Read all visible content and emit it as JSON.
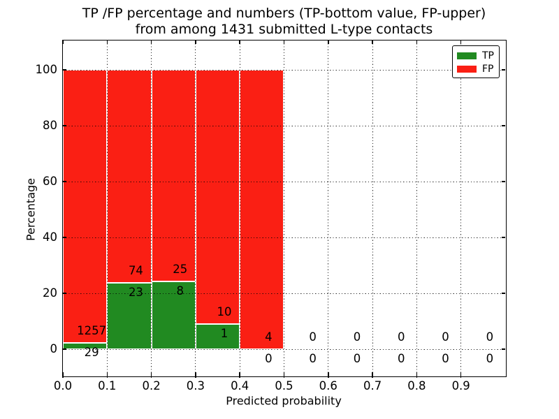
{
  "figure": {
    "title_line1": "TP /FP percentage and numbers (TP-bottom value, FP-upper)",
    "title_line2": "from among 1431 submitted L-type contacts",
    "xlabel": "Predicted probability",
    "ylabel": "Percentage"
  },
  "legend": {
    "position": "upper right",
    "items": [
      {
        "label": "TP",
        "color": "#218a21"
      },
      {
        "label": "FP",
        "color": "#fa1f14"
      }
    ]
  },
  "colors": {
    "tp_green": "#218a21",
    "fp_red": "#fa1f14",
    "grid": "#000000",
    "frame": "#000000",
    "background": "#ffffff",
    "bar_edge": "#ffffff"
  },
  "chart_data": {
    "type": "bar",
    "stacked": true,
    "normalized_to_100_percent": true,
    "title": "TP /FP percentage and numbers (TP-bottom value, FP-upper) from among 1431 submitted L-type contacts",
    "xlabel": "Predicted probability",
    "ylabel": "Percentage",
    "xlim": [
      0.0,
      1.0
    ],
    "ylim": [
      -9.5,
      110.5
    ],
    "xticks": [
      "0.0",
      "0.1",
      "0.2",
      "0.3",
      "0.4",
      "0.5",
      "0.6",
      "0.7",
      "0.8",
      "0.9"
    ],
    "yticks": [
      0,
      20,
      40,
      60,
      80,
      100
    ],
    "grid": "dotted",
    "legend_position": "upper right",
    "bin_width": 0.1,
    "bin_starts": [
      0.0,
      0.1,
      0.2,
      0.3,
      0.4,
      0.5,
      0.6,
      0.7,
      0.8,
      0.9
    ],
    "series": [
      {
        "name": "TP",
        "color": "#218a21",
        "values": [
          29,
          23,
          8,
          1,
          0,
          0,
          0,
          0,
          0,
          0
        ]
      },
      {
        "name": "FP",
        "color": "#fa1f14",
        "values": [
          1257,
          74,
          25,
          10,
          4,
          0,
          0,
          0,
          0,
          0
        ]
      }
    ],
    "tp_percent_of_bin": [
      2.25,
      23.71,
      24.24,
      9.09,
      0,
      0,
      0,
      0,
      0,
      0
    ],
    "bar_total_percent": [
      100,
      100,
      100,
      100,
      100,
      0,
      0,
      0,
      0,
      0
    ]
  }
}
